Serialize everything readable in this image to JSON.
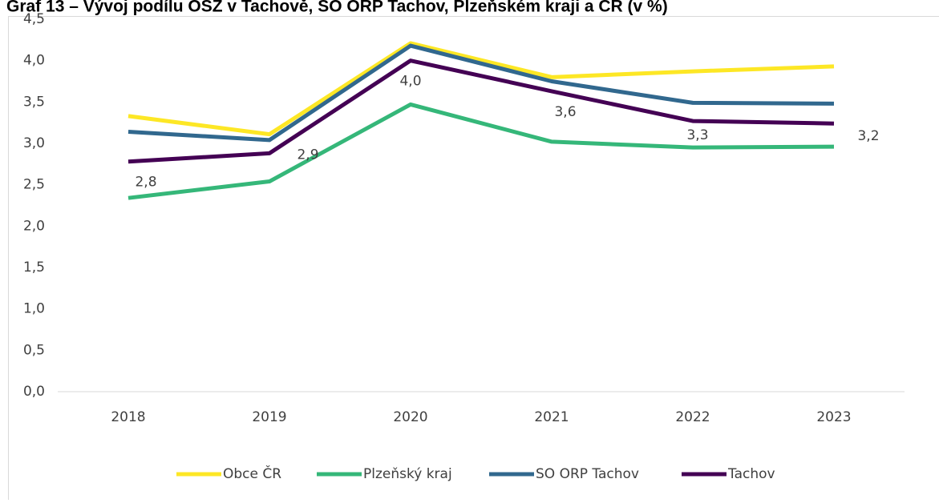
{
  "chart_data": {
    "type": "line",
    "title": "Graf 13 – Vývoj podílu OSZ v Tachově, SO ORP Tachov, Plzeňském kraji a ČR (v %)",
    "categories": [
      "2018",
      "2019",
      "2020",
      "2021",
      "2022",
      "2023"
    ],
    "series": [
      {
        "name": "Obce ČR",
        "color": "#fde725",
        "values": [
          3.33,
          3.11,
          4.21,
          3.8,
          3.87,
          3.93
        ]
      },
      {
        "name": "Plzeňský kraj",
        "color": "#35b779",
        "values": [
          2.34,
          2.54,
          3.47,
          3.02,
          2.95,
          2.96
        ]
      },
      {
        "name": "SO ORP Tachov",
        "color": "#31688e",
        "values": [
          3.14,
          3.04,
          4.18,
          3.75,
          3.49,
          3.48
        ]
      },
      {
        "name": "Tachov",
        "color": "#440154",
        "values": [
          2.78,
          2.88,
          4.0,
          3.63,
          3.27,
          3.24
        ],
        "value_labels": [
          "2,8",
          "2,9",
          "4,0",
          "3,6",
          "3,3",
          "3,2"
        ]
      }
    ],
    "ylim": [
      0,
      4.5
    ],
    "yticks": [
      {
        "value": 0,
        "label": "0,0"
      },
      {
        "value": 0.5,
        "label": "0,5"
      },
      {
        "value": 1,
        "label": "1,0"
      },
      {
        "value": 1.5,
        "label": "1,5"
      },
      {
        "value": 2,
        "label": "2,0"
      },
      {
        "value": 2.5,
        "label": "2,5"
      },
      {
        "value": 3,
        "label": "3,0"
      },
      {
        "value": 3.5,
        "label": "3,5"
      },
      {
        "value": 4,
        "label": "4,0"
      },
      {
        "value": 4.5,
        "label": "4,5"
      }
    ],
    "grid": false,
    "legend": "bottom"
  }
}
